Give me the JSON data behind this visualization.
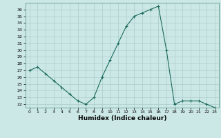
{
  "x": [
    0,
    1,
    2,
    3,
    4,
    5,
    6,
    7,
    8,
    9,
    10,
    11,
    12,
    13,
    14,
    15,
    16,
    17,
    18,
    19,
    20,
    21,
    22,
    23
  ],
  "y": [
    27,
    27.5,
    26.5,
    25.5,
    24.5,
    23.5,
    22.5,
    22,
    23,
    26,
    28.5,
    31,
    33.5,
    35,
    35.5,
    36,
    36.5,
    30,
    22,
    22.5,
    22.5,
    22.5,
    22,
    21.5
  ],
  "xlabel": "Humidex (Indice chaleur)",
  "line_color": "#1a6b5a",
  "marker": "+",
  "marker_size": 3,
  "bg_color": "#cce8e6",
  "grid_color": "#aaccca",
  "ylim": [
    21.5,
    37.0
  ],
  "xlim": [
    -0.5,
    23.5
  ],
  "yticks": [
    22,
    23,
    24,
    25,
    26,
    27,
    28,
    29,
    30,
    31,
    32,
    33,
    34,
    35,
    36
  ],
  "xticks": [
    0,
    1,
    2,
    3,
    4,
    5,
    6,
    7,
    8,
    9,
    10,
    11,
    12,
    13,
    14,
    15,
    16,
    17,
    18,
    19,
    20,
    21,
    22,
    23
  ]
}
